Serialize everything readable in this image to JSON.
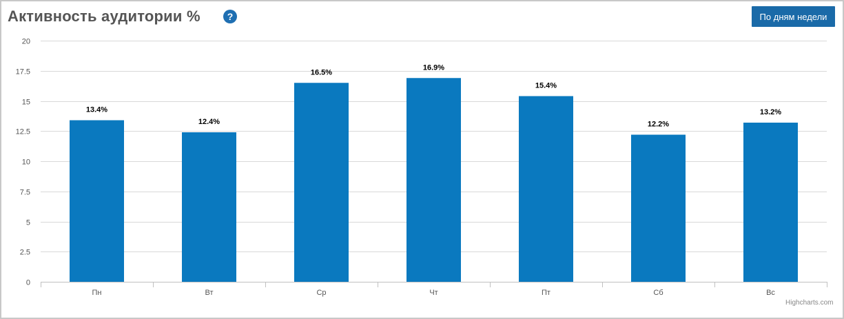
{
  "header": {
    "title": "Активность аудитории %",
    "help_icon": "question-circle-icon",
    "help_symbol": "?",
    "mode_button_label": "По дням недели"
  },
  "credit": "Highcharts.com",
  "colors": {
    "bar": "#0a79bf",
    "accent": "#1a6aa8",
    "grid": "#d8d8d8"
  },
  "chart_data": {
    "type": "bar",
    "categories": [
      "Пн",
      "Вт",
      "Ср",
      "Чт",
      "Пт",
      "Сб",
      "Вс"
    ],
    "series": [
      {
        "values": [
          13.4,
          12.4,
          16.5,
          16.9,
          15.4,
          12.2,
          13.2
        ]
      }
    ],
    "data_labels": [
      "13.4%",
      "12.4%",
      "16.5%",
      "16.9%",
      "15.4%",
      "12.2%",
      "13.2%"
    ],
    "yticks": [
      "0",
      "2.5",
      "5",
      "7.5",
      "10",
      "12.5",
      "15",
      "17.5",
      "20"
    ],
    "ylim": [
      0,
      20
    ],
    "grid": true,
    "legend": "none"
  }
}
